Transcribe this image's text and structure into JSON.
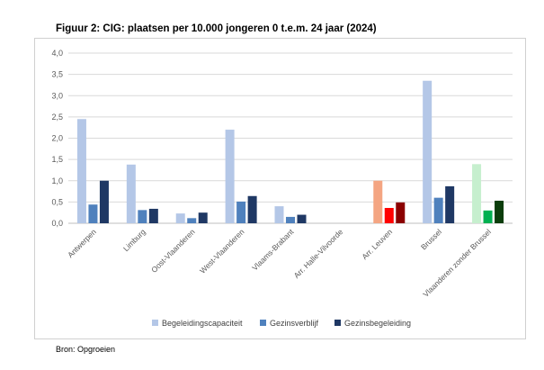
{
  "figure": {
    "title": "Figuur 2: CIG: plaatsen per 10.000 jongeren 0 t.e.m. 24 jaar (2024)",
    "source": "Bron: Opgroeien"
  },
  "chart_data": {
    "type": "bar",
    "title": "Figuur 2: CIG: plaatsen per 10.000 jongeren 0 t.e.m. 24 jaar (2024)",
    "xlabel": "",
    "ylabel": "",
    "ylim": [
      0,
      4
    ],
    "yticks": [
      "0,0",
      "0,5",
      "1,0",
      "1,5",
      "2,0",
      "2,5",
      "3,0",
      "3,5",
      "4,0"
    ],
    "grid": true,
    "legend": "bottom",
    "categories": [
      "Antwerpen",
      "Limburg",
      "Oost-Vlaanderen",
      "West-Vlaanderen",
      "Vlaams-Brabant",
      "Arr. Halle-Vilvoorde",
      "Arr. Leuven",
      "Brussel",
      "Vlaanderen zonder Brussel"
    ],
    "series": [
      {
        "name": "Begeleidingscapaciteit",
        "color": "#b4c7e7",
        "values": [
          2.45,
          1.38,
          0.23,
          2.2,
          0.4,
          0,
          1.0,
          3.35,
          1.39
        ],
        "overrides": {
          "6": "#f4a582",
          "8": "#c6efce"
        }
      },
      {
        "name": "Gezinsverblijf",
        "color": "#4f81bd",
        "values": [
          0.44,
          0.31,
          0.12,
          0.51,
          0.15,
          0,
          0.36,
          0.6,
          0.3
        ],
        "overrides": {
          "6": "#ff0000",
          "8": "#00b050"
        }
      },
      {
        "name": "Gezinsbegeleiding",
        "color": "#1f3864",
        "values": [
          1.0,
          0.34,
          0.25,
          0.64,
          0.2,
          0,
          0.49,
          0.87,
          0.53
        ],
        "overrides": {
          "6": "#8b0000",
          "8": "#0b3d0b"
        }
      }
    ]
  }
}
